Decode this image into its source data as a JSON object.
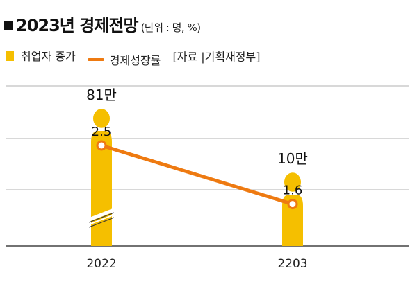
{
  "header": {
    "title": "2023년 경제전망",
    "unit": "(단위 : 명, %)"
  },
  "legend": {
    "items": [
      {
        "label": "취업자 증가",
        "kind": "bar"
      },
      {
        "label": "경제성장률",
        "kind": "line"
      }
    ],
    "source": "[자료 |기획재정부]"
  },
  "colors": {
    "bar": "#f5bf00",
    "line": "#ee7a11",
    "grid": "#b0b0b0",
    "axis": "#444444"
  },
  "chart_data": {
    "type": "bar",
    "categories": [
      "2022",
      "2203"
    ],
    "series": [
      {
        "name": "취업자 증가",
        "kind": "bar",
        "values": [
          810000,
          100000
        ],
        "labels": [
          "81만",
          "10만"
        ],
        "axis_break": [
          true,
          false
        ]
      },
      {
        "name": "경제성장률",
        "kind": "line",
        "values": [
          2.5,
          1.6
        ],
        "labels": [
          "2.5",
          "1.6"
        ]
      }
    ],
    "grid": true,
    "legend_position": "top-left"
  }
}
